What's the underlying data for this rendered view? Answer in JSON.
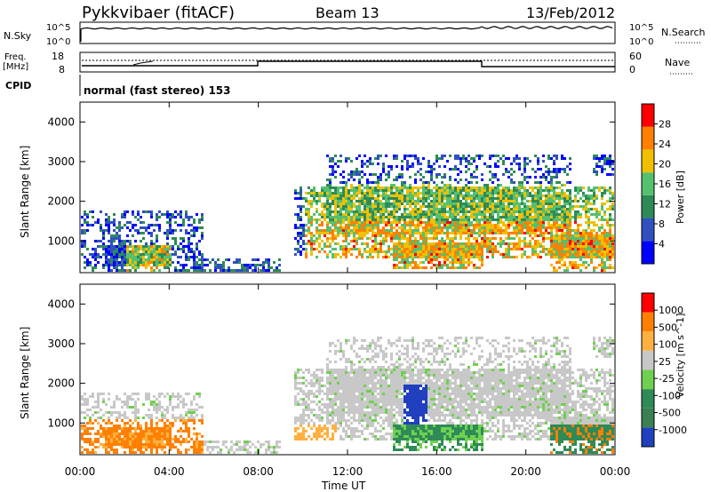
{
  "header": {
    "site_title": "Pykkvibaer (fitACF)",
    "beam": "Beam 13",
    "date": "13/Feb/2012"
  },
  "noise_panel": {
    "left_label": "N.Sky",
    "right_label": "N.Search",
    "left_ticks": [
      "10^5",
      "10^0"
    ],
    "right_ticks": [
      "10^5",
      "10^0"
    ]
  },
  "freq_panel": {
    "left_label_line1": "Freq.",
    "left_label_line2": "[MHz]",
    "left_ticks": [
      "18",
      "8"
    ],
    "right_label": "Nave",
    "right_ticks": [
      "60",
      "0"
    ]
  },
  "cpid_panel": {
    "label": "CPID",
    "text": "normal (fast stereo) 153"
  },
  "chart_data": [
    {
      "type": "heatmap",
      "name": "power",
      "ylabel": "Slant Range [km]",
      "yticks": [
        "4000",
        "3000",
        "2000",
        "1000"
      ],
      "ylim": [
        200,
        4500
      ],
      "colorbar_label": "Power [dB]",
      "colorbar_ticks": [
        "28",
        "24",
        "20",
        "16",
        "12",
        "8",
        "4"
      ],
      "colorbar_range": [
        0,
        30
      ],
      "colors": [
        "#0000ff",
        "#3050c0",
        "#2e8b57",
        "#55c070",
        "#f0c000",
        "#ff8000",
        "#ff0000"
      ]
    },
    {
      "type": "heatmap",
      "name": "velocity",
      "ylabel": "Slant Range [km]",
      "yticks": [
        "4000",
        "3000",
        "2000",
        "1000"
      ],
      "ylim": [
        200,
        4500
      ],
      "colorbar_label": "Velocity [m s^-1]",
      "colorbar_ticks": [
        "1000",
        "500",
        "100",
        "25",
        "-25",
        "-100",
        "-500",
        "-1000"
      ],
      "colors": [
        "#2040c0",
        "#3a8050",
        "#2e8b57",
        "#70d050",
        "#c8c8c8",
        "#ffb040",
        "#ff8000",
        "#ff0000"
      ]
    }
  ],
  "x_axis": {
    "label": "Time UT",
    "ticks": [
      "00:00",
      "04:00",
      "08:00",
      "12:00",
      "16:00",
      "20:00",
      "00:00"
    ]
  }
}
